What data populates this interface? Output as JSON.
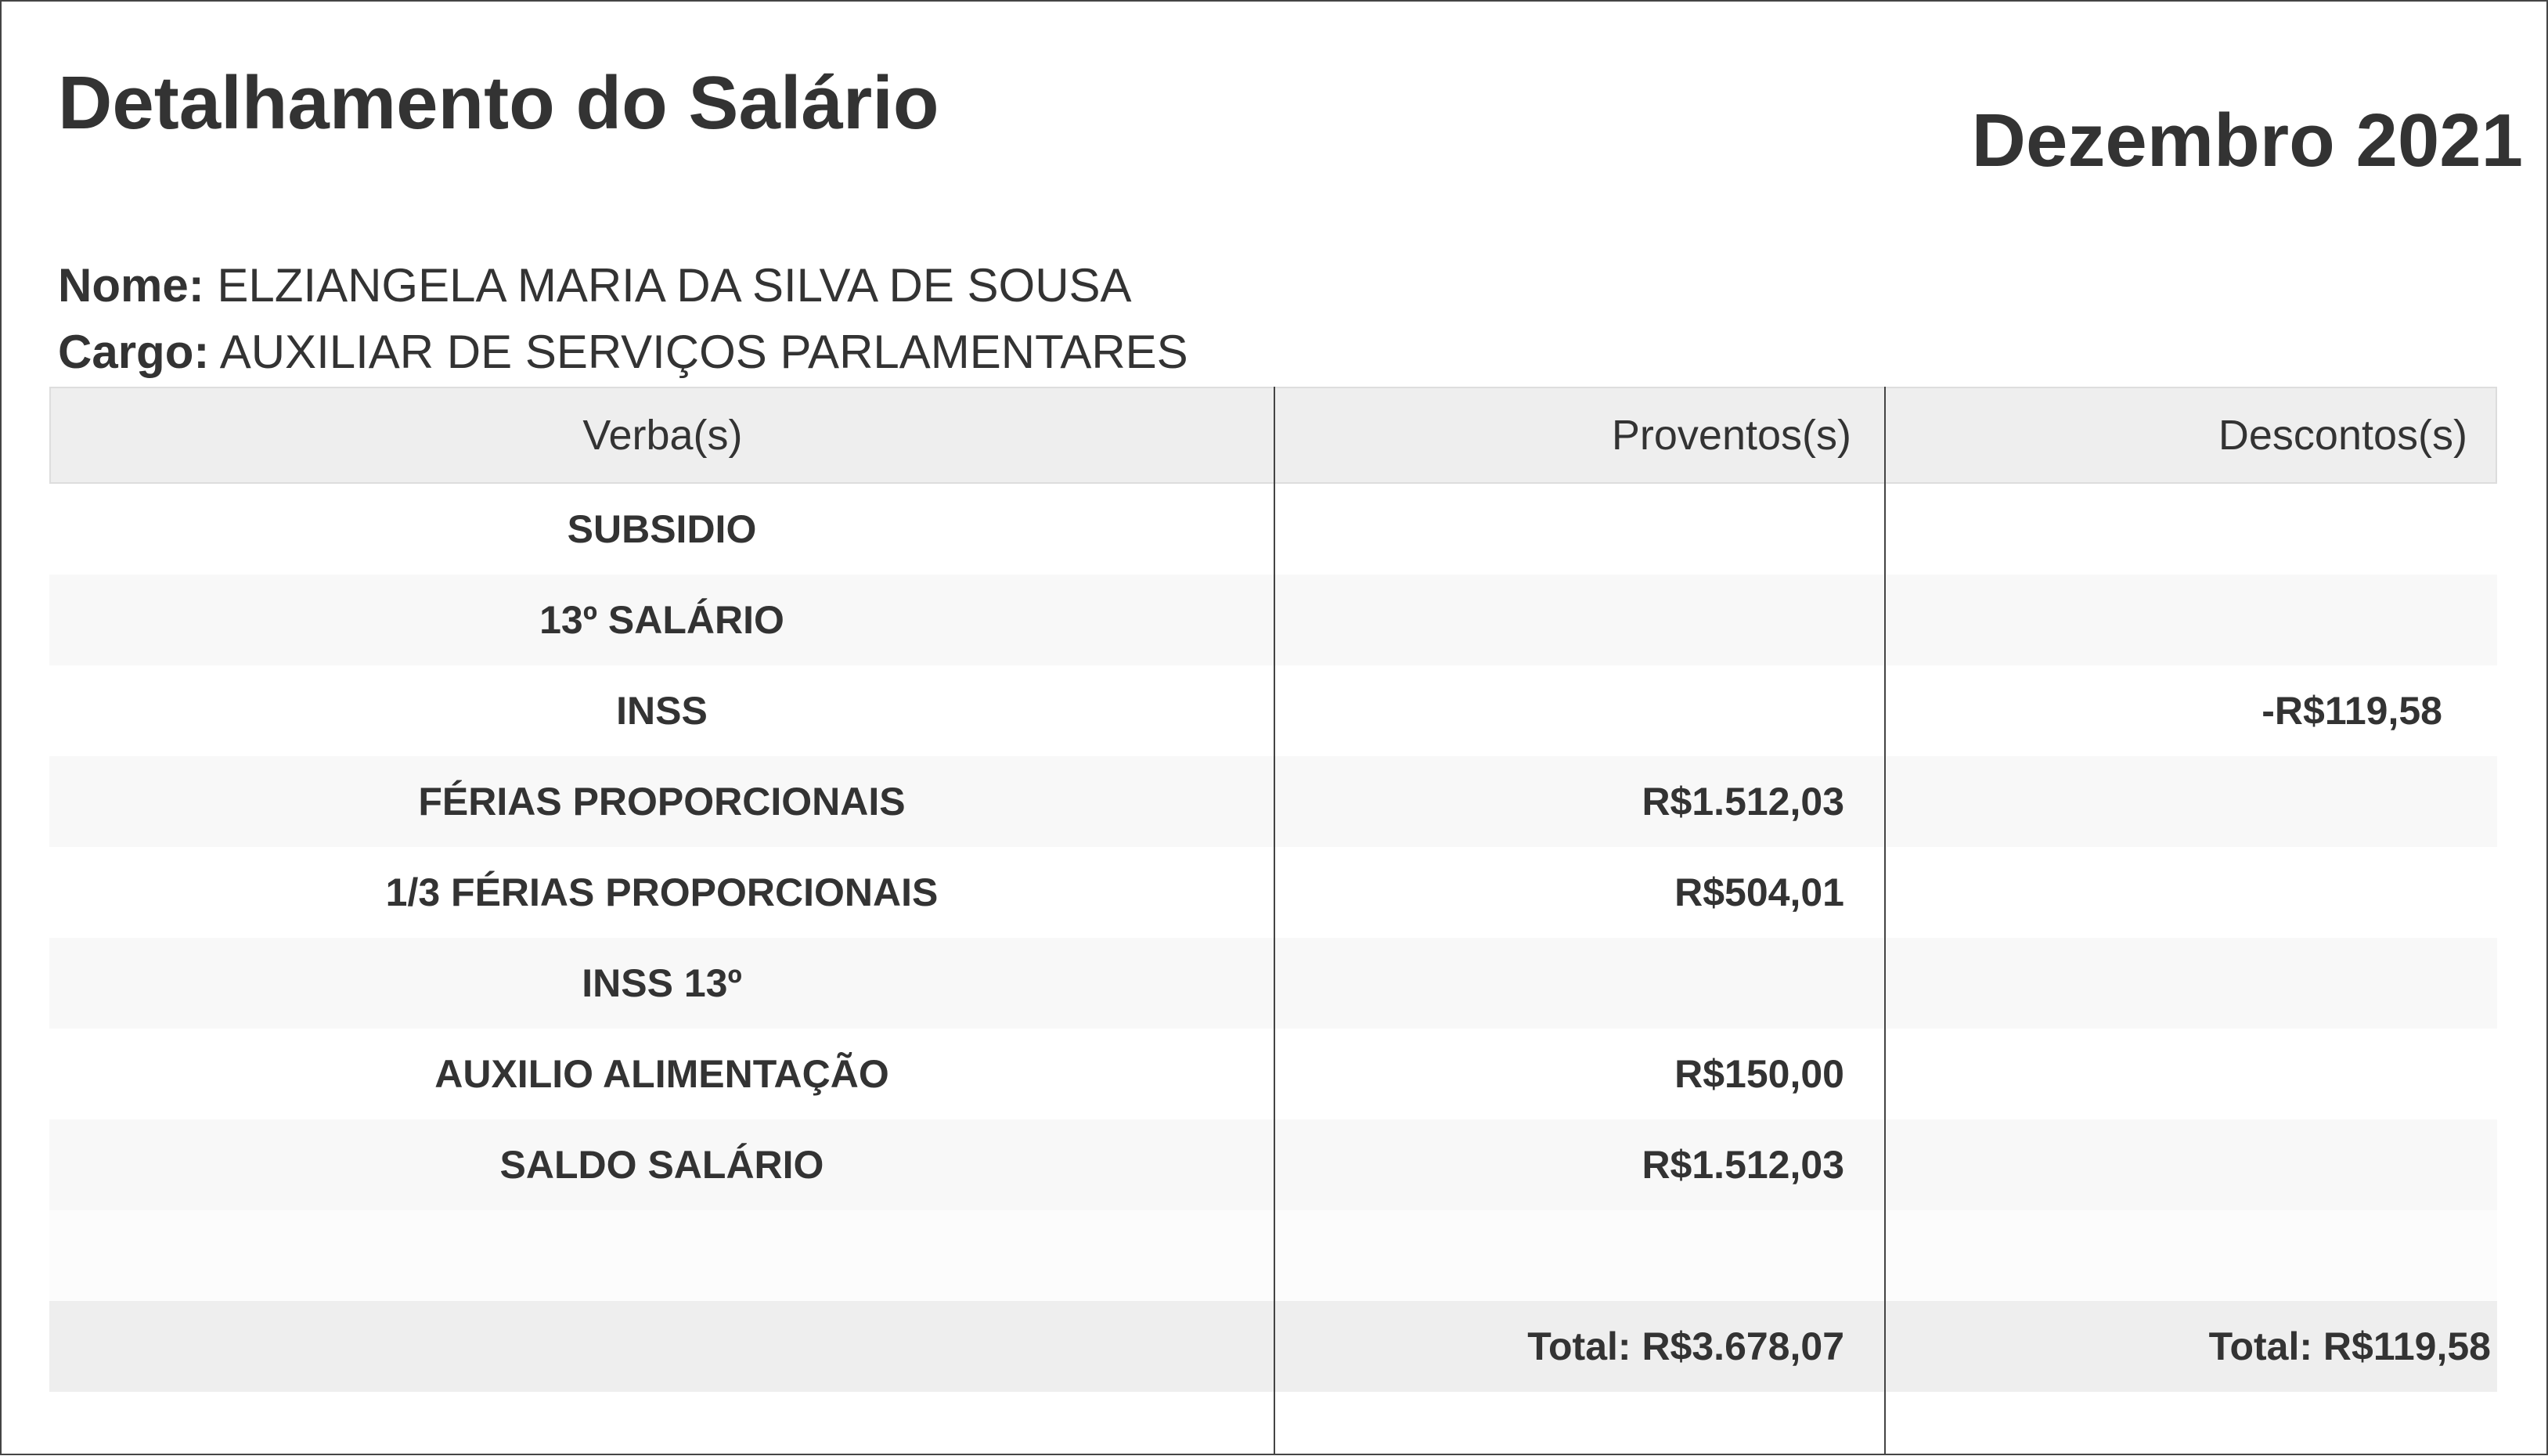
{
  "header": {
    "title": "Detalhamento do Salário",
    "period": "Dezembro 2021"
  },
  "employee": {
    "name_label": "Nome:",
    "name": "ELZIANGELA MARIA DA SILVA DE SOUSA",
    "role_label": "Cargo:",
    "role": "AUXILIAR DE SERVIÇOS PARLAMENTARES"
  },
  "table": {
    "columns": [
      "Verba(s)",
      "Proventos(s)",
      "Descontos(s)"
    ],
    "rows": [
      {
        "verba": "SUBSIDIO",
        "proventos": "",
        "descontos": ""
      },
      {
        "verba": "13º SALÁRIO",
        "proventos": "",
        "descontos": ""
      },
      {
        "verba": "INSS",
        "proventos": "",
        "descontos": "-R$119,58"
      },
      {
        "verba": "FÉRIAS PROPORCIONAIS",
        "proventos": "R$1.512,03",
        "descontos": ""
      },
      {
        "verba": "1/3 FÉRIAS PROPORCIONAIS",
        "proventos": "R$504,01",
        "descontos": ""
      },
      {
        "verba": "INSS 13º",
        "proventos": "",
        "descontos": ""
      },
      {
        "verba": "AUXILIO ALIMENTAÇÃO",
        "proventos": "R$150,00",
        "descontos": ""
      },
      {
        "verba": "SALDO SALÁRIO",
        "proventos": "R$1.512,03",
        "descontos": ""
      },
      {
        "verba": "",
        "proventos": "",
        "descontos": ""
      }
    ],
    "total_proventos": "Total: R$3.678,07",
    "total_descontos": "Total: R$119,58"
  }
}
